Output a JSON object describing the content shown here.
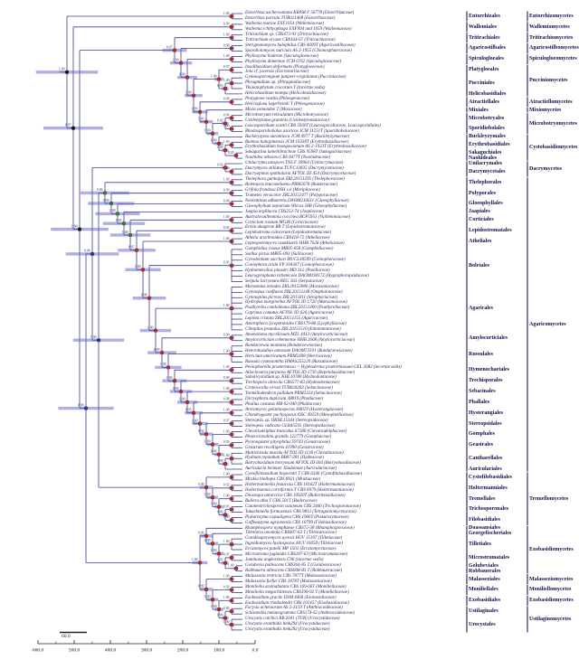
{
  "figure": {
    "type": "phylogenetic-chronogram",
    "taxon_count": 116,
    "description": "Dated phylogeny of Basidiomycota with orders and classes"
  },
  "colors": {
    "branch": "#3a3a96",
    "bar": "rgba(95,95,205,0.5)",
    "dot_red": "#cc2424",
    "dot_green": "#2e8b22",
    "dot_blue": "#2233bb",
    "dot_black": "#141414",
    "label": "#10104e",
    "taxon": "#26265e",
    "support": "#333333",
    "separator": "#1c1c5e",
    "axis": "#222222"
  },
  "supports": [
    "1.00",
    "0.99",
    "1.00",
    "0.98",
    "1.00",
    "0.97",
    "1.00",
    "0.93",
    "1.00",
    "0.99",
    "0.96",
    "1.00",
    "0.92",
    "1.00",
    "0.95",
    "1.00",
    "0.90",
    "1.00"
  ],
  "axis": {
    "ticks": [
      "600.0",
      "500.0",
      "400.0",
      "300.0",
      "200.0",
      "100.0",
      "0.0"
    ],
    "scale_bar_label": "60.0"
  },
  "taxa": [
    "Entorrhiza aschersoniana KRAM F 56778 (Entorrhizaceae)",
    "Entorrhiza parvula TUB021468 (Entorrhizaceae)",
    "Wallemia muriae EXF1054 (Wallemiaceae)",
    "Wallemia ichthyophaga EXF994 and 1059 (Wallemiaceae)",
    "Tritirachium sp. CBS473-93 (Tritirachiaceae)",
    "Tritirachium oryzae CBS164-67 (Tritirachiaceae)",
    "Sterigmatomyces halophilus CBS 4609T (Agaricostilbaceae)",
    "Sporobolomyces auricula AS 2-1955 (Chionosphaeraceae)",
    "Phyllozyma linderae (Spiculogloeaceae)",
    "Phyllozyma dimennae JCM 6762 (Spiculogloeaceae)",
    "Insolibasidium deformans (Platygloeaceae)",
    "Jola cf. javensis (Eocronartiaceae)",
    "Gymnosporangium juniperi-virginianae (Pucciniaceae)",
    "Phragmidium sp. (Phragmidiaceae)",
    "Thanatophytum crocorum T (Incertae sedis)",
    "Helicobasidium mompa (Helicobasidiaceae)",
    "Platygloea vestita (Phleogenaceae)",
    "Helicogloea lagerheimii T (Phleogenaceae)",
    "Mixia osmundae T (Mixiaceae)",
    "Microbotryum reticulatum (Microbotryaceae)",
    "Ustilentyloma graminis (Ustilentylomataceae)",
    "Leucosporidium scottii CBS 5930T (Leucosporidiaceae, Leucosporidiales)",
    "Rhodosporidiobolus azoricus JCM 11251T (Sporidiobolaceae)",
    "Buckleyzyma aurantiaca JCM 4977 T (Buckleyzymaceae)",
    "Bannoa hahajimensis JCM 10338T (Erythrobasidiaceae)",
    "Erythrobasidium hasegawianum AS 2-1923T (Erythrobasidiaceae)",
    "Sakaguchia lamellibrachiae CBS 9598T (Sakaguchiaceae)",
    "Naohidea sebacea CBS 8477T (Naohideaceae)",
    "Unilacryma unispora TNS F 39964 (Unilacrymaceae)",
    "Dacrymyces stillatus TUFC12835 (Dacrymycetaceae)",
    "Dacryopinax spathularia AFTOL ID 454 (Dacrymycetaceae)",
    "Thelephora ganbajun ZRL20151295 (Thelephoraceae)",
    "Boletopsis leucomelaena PBM2678 (Bankeraceae)",
    "Grifola frondosa DSH s.n (Meripilaceae)",
    "Trametes versicolor ZRL20151477 (Polyporaceae)",
    "Neolentinus adhaerens DAOM216611 (Gloeophyllaceae)",
    "Gloeophyllum sepiarium Wilcox 58B (Gloeophyllaceae)",
    "Jaapia argillacea CBS252-74 (Jaapiaceae)",
    "Australovuilleminia coccinea BCP5951 (Vuilleminiaceae)",
    "Corticium roseum MG46 (Corticiaceae)",
    "Ertzia akagerae BR T (Lepidostromataceae)",
    "Lepidostroma calocerum (Lepidostromataceae)",
    "Athelia arachnoidea CBS418-72 (Atheliaceae)",
    "Leptosporomyces raunkiaerii HHB 7628 (Atheliaceae)",
    "Gomphidius roseus MB05-058 (Gomphidiaceae)",
    "Suillus pictus MB05-093 (Suillaceae)",
    "Gyrodontium sacchari MUCL40599 (Coniophoraceae)",
    "Coniophora arida FP 104367 (Coniophoraceae)",
    "Hydnomerulius pinastri MD 312 (Paxillaceae)",
    "Leucogyrophana lichenicola DAOM194172 (Hygrophoropsidaceae)",
    "Serpula lacrymans REG 363 (Serpulaceae)",
    "Marasmius oreades ZRL20153086 (Marasmiaceae)",
    "Gymnopus confluens ZRL20151148 (Omphalotaceae)",
    "Gymnopilus picreus ZRL2015011 (Strophariaceae)",
    "Hydropus marginellus AFTOL ID 1720 (Marasmiaceae)",
    "Psathyrella candolleana ZRL20151400 (Psathyrellaceae)",
    "Coprinus comatus AFTOL ID 626 (Agaricaceae)",
    "Lepiota cristata ZRL20151155 (Agaricaceae)",
    "Asterophora lycoperdoides CBS179-86 (Lyophyllaceae)",
    "Clitopilus prunulus ZRL20151510 (Entolomataceae)",
    "Anomoloma myceliosum MZL 4413 (Amylocorticiaceae)",
    "Amylocorticium cebennense HHB 2608 (Amylocorticiaceae)",
    "Bondarzewia montana (Bondarzewiaceae)",
    "Heterobasidion annosum DAOM73191 (Bondarzewiaceae)",
    "Hericium americanum PBM2498 (Hericiaceae)",
    "Russula cyanoxantha HMAS255220 (Russulaceae)",
    "Peniophorella praetermissa = Hyphoderma praetermissum GEL 2082 (incertae sedis)",
    "Alloclavaria purpurea AFTOL ID 1736 (Repetobasidiaceae)",
    "Subulicystidium sp. KHL10780 (Hydnodontaceae)",
    "Trechispora alnicola CBS577-83 (Hydnodontaceae)",
    "Craterocolla cerasi TUB020203 (Sebacinaceae)",
    "Tremellodendron pallidum PBM2324 (Sebacinaceae)",
    "Dictyophora duplicata 38819 (Phallaceae)",
    "Phallus costatus MB 02-040 (Phallaceae)",
    "Aroramyces gelatinosporus H4019 (Hysterangiaceae)",
    "Chondrogaster pachysporus OSC 49259 (Mesophelliaceae)",
    "Stereopsis sp. OKHL15344 (Stereopsidaceae)",
    "Stereopsis radicans GLB45595 (Stereopsidaceae)",
    "Clavariadelphus truncatus 67280 (Clavariadelphaceae)",
    "Phaeoclavulina grandis 122779 (Gomphaceae)",
    "Pyrenogaster pityophilus 59743 (Geastraceae)",
    "Geastrum recolligens 41990 (Geastraceae)",
    "Multiclavula mucida AFTOL ID 1130 (Clavulinaceae)",
    "Hydnum repandum BB07-281 (Hydnaceae)",
    "Botryobasidium botryosum AFTOL ID 604 (Botryobasidiaceae)",
    "Auricularia heimuer Xiadaimae (Auriculariaceae)",
    "Cystofilobasidium bisporidii T CBS 6346 (Cystofilobasidiaceae)",
    "Mrakia blollopis CBS 8921 (Mrakiaceae)",
    "Holtermanniella festucosa CBS 10162T (Holtermanniaceae)",
    "Holtermannia corniformis T CBS 6979 (Holtermanniaceae)",
    "Dioszegia antarctica CBS 10920T (Bulleribasidiaceae)",
    "Bullera alba T CBS 501T (Bulleraceae)",
    "Cutaneotrichosporon cutaneum CBS 2466 (Trichosporonaceae)",
    "Takashimella formosensis CBS 9812 (Tetragoniomycetaceae)",
    "Piskurozyma capsuligena CBS 1906T (Piskurozymaceae)",
    "Goffeauzyma agrionensis CBS 10799 (Filobasidiaceae)",
    "Rhamphospora nymphaeae CBS72-38 (Rhamphosporaceae)",
    "Tilletiaria anomala CBS607-63 T (Tilletiariaceae)",
    "Conidiosporomyces ayresii HUV 15197 (Tilletiaceae)",
    "Ingoldiomyces hyalosporus HUV 16058 (Tilletiaceae)",
    "Erratomyces patelii MP 1501 (Erratomycetaceae)",
    "Microstroma juglandis CBS287-63 (Microstromataceae)",
    "Jaminaea angkorensis C96 (incertae sedis)",
    "Golubevia pallescens CBS364-85 T (Golubeviaceae)",
    "Robbauera albescens CBS608-83 T (Robbaueraceae)",
    "Malassezia restricta CBS 7877T (Malasseziaceae)",
    "Malassezia furfur CBS 1878T (Malasseziaceae)",
    "Moniliella acetoabutans CBS 169-66T (Moniliellaceae)",
    "Moniliella megachiliensis CBS190-92 T (Moniliellaceae)",
    "Exobasidium gracile DSM 4460 (Exobasidiaceae)",
    "Exobasidium rhododendri CBS 101457 (Exobasidiaceae)",
    "Farysia acheniorum AS 2-3159 T (Anthracoideaceae)",
    "Schizonella melanogramma CBS174-42 (Anthracoideaceae)",
    "Urocystis colchici RB 2041 (TUB) (Urocystidaceae)",
    "Urocystis eranthidis hmk294 (Urocystidaceae)",
    "Urocystis eranthidis hmk292 (Urocystidaceae)"
  ],
  "classes": [
    {
      "name": "Entorrhizomycetes",
      "from": 1,
      "to": 2
    },
    {
      "name": "Wallemiomycetes",
      "from": 3,
      "to": 4
    },
    {
      "name": "Tritirachiomycetes",
      "from": 5,
      "to": 6
    },
    {
      "name": "Agaricostilbomycetes",
      "from": 7,
      "to": 8
    },
    {
      "name": "Spiculogloeomycetes",
      "from": 9,
      "to": 10
    },
    {
      "name": "Pucciniomycetes",
      "from": 11,
      "to": 16
    },
    {
      "name": "Atractiellomycetes",
      "from": 17,
      "to": 18
    },
    {
      "name": "Mixiomycetes",
      "from": 19,
      "to": 19
    },
    {
      "name": "Microbotryomycetes",
      "from": 20,
      "to": 23
    },
    {
      "name": "Cystobasidiomycetes",
      "from": 24,
      "to": 28
    },
    {
      "name": "Dacrymycetes",
      "from": 29,
      "to": 31
    },
    {
      "name": "Agaricomycetes",
      "from": 32,
      "to": 86
    },
    {
      "name": "Tremellomycetes",
      "from": 87,
      "to": 96
    },
    {
      "name": "Exobasidiomycetes",
      "from": 97,
      "to": 105
    },
    {
      "name": "Malasseziomycetes",
      "from": 106,
      "to": 107
    },
    {
      "name": "Moniliellomycetes",
      "from": 108,
      "to": 109
    },
    {
      "name": "Exobasidiomycetes",
      "from": 110,
      "to": 111
    },
    {
      "name": "Ustilaginomycetes",
      "from": 112,
      "to": 116
    }
  ],
  "orders": [
    {
      "name": "Entorrhizales",
      "cls": 0,
      "from": 1,
      "to": 2
    },
    {
      "name": "Wallemiales",
      "cls": 1,
      "from": 3,
      "to": 4
    },
    {
      "name": "Tritirachiales",
      "cls": 2,
      "from": 5,
      "to": 6
    },
    {
      "name": "Agaricostilbales",
      "cls": 3,
      "from": 7,
      "to": 8
    },
    {
      "name": "Spiculogloeales",
      "cls": 4,
      "from": 9,
      "to": 10
    },
    {
      "name": "Platygloeales",
      "cls": 5,
      "from": 11,
      "to": 12
    },
    {
      "name": "Pucciniales",
      "cls": 5,
      "from": 13,
      "to": 15
    },
    {
      "name": "Helicobasidiales",
      "cls": 5,
      "from": 16,
      "to": 16
    },
    {
      "name": "Atractiellales",
      "cls": 6,
      "from": 17,
      "to": 18
    },
    {
      "name": "Mixiales",
      "cls": 7,
      "from": 19,
      "to": 19
    },
    {
      "name": "Microbotryales",
      "cls": 8,
      "from": 20,
      "to": 21
    },
    {
      "name": "Sporidiobolales",
      "cls": 8,
      "from": 22,
      "to": 23
    },
    {
      "name": "Buckleyzymales",
      "cls": 9,
      "from": 24,
      "to": 24
    },
    {
      "name": "Erythrobasidiales",
      "cls": 9,
      "from": 25,
      "to": 26
    },
    {
      "name": "Sakaguchiales",
      "cls": 9,
      "from": 27,
      "to": 27
    },
    {
      "name": "Naohideales",
      "cls": 9,
      "from": 28,
      "to": 28
    },
    {
      "name": "Unilacrymales",
      "cls": 10,
      "from": 29,
      "to": 29
    },
    {
      "name": "Dacrymycetales",
      "cls": 10,
      "from": 30,
      "to": 31
    },
    {
      "name": "Thelephorales",
      "cls": 11,
      "from": 32,
      "to": 33
    },
    {
      "name": "Polyporales",
      "cls": 11,
      "from": 34,
      "to": 35
    },
    {
      "name": "Gloeophyllales",
      "cls": 11,
      "from": 36,
      "to": 37
    },
    {
      "name": "Jaapiales",
      "cls": 11,
      "from": 38,
      "to": 38
    },
    {
      "name": "Corticiales",
      "cls": 11,
      "from": 39,
      "to": 40
    },
    {
      "name": "Lepidostromatales",
      "cls": 11,
      "from": 41,
      "to": 42
    },
    {
      "name": "Atheliales",
      "cls": 11,
      "from": 43,
      "to": 44
    },
    {
      "name": "Boletales",
      "cls": 11,
      "from": 45,
      "to": 51
    },
    {
      "name": "Agaricales",
      "cls": 11,
      "from": 52,
      "to": 60
    },
    {
      "name": "Amylocorticiales",
      "cls": 11,
      "from": 61,
      "to": 62
    },
    {
      "name": "Russulales",
      "cls": 11,
      "from": 63,
      "to": 66
    },
    {
      "name": "Hymenochaetales",
      "cls": 11,
      "from": 67,
      "to": 68
    },
    {
      "name": "Trechisporales",
      "cls": 11,
      "from": 69,
      "to": 70
    },
    {
      "name": "Sebacinales",
      "cls": 11,
      "from": 71,
      "to": 72
    },
    {
      "name": "Phallales",
      "cls": 11,
      "from": 73,
      "to": 74
    },
    {
      "name": "Hysterangiales",
      "cls": 11,
      "from": 75,
      "to": 76
    },
    {
      "name": "Stereopsidales",
      "cls": 11,
      "from": 77,
      "to": 78
    },
    {
      "name": "Gomphales",
      "cls": 11,
      "from": 79,
      "to": 80
    },
    {
      "name": "Geastrales",
      "cls": 11,
      "from": 81,
      "to": 82
    },
    {
      "name": "Cantharellales",
      "cls": 11,
      "from": 83,
      "to": 85
    },
    {
      "name": "Auriculariales",
      "cls": 11,
      "from": 86,
      "to": 86
    },
    {
      "name": "Cystofilobasidiales",
      "cls": 12,
      "from": 87,
      "to": 88
    },
    {
      "name": "Holtermanniales",
      "cls": 12,
      "from": 89,
      "to": 90
    },
    {
      "name": "Tremellales",
      "cls": 12,
      "from": 91,
      "to": 92
    },
    {
      "name": "Trichosporonales",
      "cls": 12,
      "from": 93,
      "to": 94
    },
    {
      "name": "Filobasidiales",
      "cls": 12,
      "from": 95,
      "to": 96
    },
    {
      "name": "Doassansiales",
      "cls": 13,
      "from": 97,
      "to": 97
    },
    {
      "name": "Georgefischeriales",
      "cls": 13,
      "from": 98,
      "to": 98
    },
    {
      "name": "Tilletiales",
      "cls": 13,
      "from": 99,
      "to": 101
    },
    {
      "name": "Microstromatales",
      "cls": 13,
      "from": 102,
      "to": 103
    },
    {
      "name": "Golubeviales",
      "cls": 13,
      "from": 104,
      "to": 104
    },
    {
      "name": "Robbauerales",
      "cls": 13,
      "from": 105,
      "to": 105
    },
    {
      "name": "Malasseziales",
      "cls": 14,
      "from": 106,
      "to": 107
    },
    {
      "name": "Moniliellales",
      "cls": 15,
      "from": 108,
      "to": 109
    },
    {
      "name": "Exobasidiales",
      "cls": 16,
      "from": 110,
      "to": 111
    },
    {
      "name": "Ustilaginales",
      "cls": 17,
      "from": 112,
      "to": 113
    },
    {
      "name": "Urocystales",
      "cls": 17,
      "from": 114,
      "to": 116
    }
  ],
  "topology": [
    0,
    [
      1,
      [
        [
          2,
          [
            3,
            [
              4,
              [
                5,
                [
                  6,
                  [
                    7,
                    [
                      8,
                      9
                    ]
                  ]
                ]
              ]
            ]
          ]
        ],
        [
          [
            10,
            [
              11,
              12
            ]
          ],
          [
            13,
            [
              14,
              [
                15,
                [
                  16,
                  17
                ]
              ]
            ]
          ]
        ]
      ]
    ]
  ]
}
